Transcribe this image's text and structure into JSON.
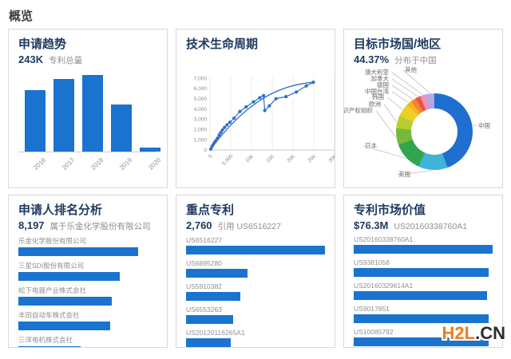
{
  "header": {
    "title": "概览"
  },
  "accent": "#1a73cf",
  "panels": {
    "trend": {
      "title": "申请趋势",
      "stat_value": "243K",
      "stat_label": "专利总量",
      "chart": {
        "type": "bar",
        "categories": [
          "2016",
          "2017",
          "2018",
          "2019",
          "2020"
        ],
        "values": [
          57,
          67,
          71,
          44,
          4
        ],
        "bar_color": "#1a73cf"
      }
    },
    "lifecycle": {
      "title": "技术生命周期",
      "chart": {
        "type": "scatter",
        "x_ticks": [
          "0",
          "5,000",
          "10K",
          "15K",
          "20K",
          "25K",
          "30K"
        ],
        "y_ticks": [
          "0",
          "1,000",
          "2,000",
          "3,000",
          "4,000",
          "5,000",
          "6,000",
          "7,000"
        ],
        "xlim": [
          0,
          30000
        ],
        "ylim": [
          0,
          7000
        ],
        "line_color": "#2d6fc7",
        "points": [
          [
            200,
            100
          ],
          [
            500,
            350
          ],
          [
            800,
            550
          ],
          [
            1100,
            750
          ],
          [
            1400,
            900
          ],
          [
            1800,
            1150
          ],
          [
            2200,
            1450
          ],
          [
            2600,
            1700
          ],
          [
            3000,
            1950
          ],
          [
            3500,
            2200
          ],
          [
            4100,
            2450
          ],
          [
            4800,
            2700
          ],
          [
            5800,
            3100
          ],
          [
            7200,
            3750
          ],
          [
            8700,
            4200
          ],
          [
            10500,
            4700
          ],
          [
            12000,
            5100
          ],
          [
            12900,
            5300
          ],
          [
            13200,
            3850
          ],
          [
            14300,
            4300
          ],
          [
            15900,
            5000
          ],
          [
            18300,
            5200
          ],
          [
            20800,
            5650
          ],
          [
            23200,
            6250
          ],
          [
            24900,
            6600
          ]
        ],
        "trend_curve": [
          [
            0,
            0
          ],
          [
            9000,
            4900
          ],
          [
            17000,
            6350
          ],
          [
            24900,
            6600
          ]
        ]
      }
    },
    "market": {
      "title": "目标市场国/地区",
      "stat_value": "44.37%",
      "stat_label": "分布于中国",
      "chart": {
        "type": "pie",
        "slices": [
          {
            "label": "中国",
            "value": 44.37,
            "color": "#1e6fd0"
          },
          {
            "label": "美国",
            "value": 12.5,
            "color": "#3fb3d8"
          },
          {
            "label": "日本",
            "value": 12.5,
            "color": "#31a64e"
          },
          {
            "label": "知识产权组织",
            "value": 7.0,
            "color": "#76b93c"
          },
          {
            "label": "欧洲",
            "value": 5.5,
            "color": "#b7cf2c"
          },
          {
            "label": "韩国",
            "value": 5.5,
            "color": "#ecd026"
          },
          {
            "label": "中国台湾",
            "value": 2.2,
            "color": "#f6b31f"
          },
          {
            "label": "德国",
            "value": 2.2,
            "color": "#f5862a"
          },
          {
            "label": "加拿大",
            "value": 2.2,
            "color": "#e9544a"
          },
          {
            "label": "澳大利亚",
            "value": 2.2,
            "color": "#f290b7"
          },
          {
            "label": "其他",
            "value": 3.83,
            "color": "#b7a6e3"
          }
        ]
      }
    },
    "applicants": {
      "title": "申请人排名分析",
      "stat_value": "8,197",
      "stat_label": "属于乐金化学股份有限公司",
      "chart": {
        "type": "bar",
        "orientation": "horizontal",
        "items": [
          {
            "label": "乐金化学股份有限公司",
            "width_pct": 86
          },
          {
            "label": "三星SDI股份有限公司",
            "width_pct": 73
          },
          {
            "label": "松下电器产业株式会社",
            "width_pct": 67
          },
          {
            "label": "丰田自动车株式会社",
            "width_pct": 66
          },
          {
            "label": "三洋电机株式会社",
            "width_pct": 45
          }
        ]
      }
    },
    "key_patents": {
      "title": "重点专利",
      "stat_value": "2,760",
      "stat_label": "引用 US6516227",
      "chart": {
        "type": "bar",
        "orientation": "horizontal",
        "items": [
          {
            "label": "US6516227",
            "width_pct": 100
          },
          {
            "label": "US6895280",
            "width_pct": 44
          },
          {
            "label": "US5910382",
            "width_pct": 39
          },
          {
            "label": "US6553263",
            "width_pct": 34
          },
          {
            "label": "US20120116265A1",
            "width_pct": 32
          }
        ]
      }
    },
    "value": {
      "title": "专利市场价值",
      "stat_value": "$76.3M",
      "stat_label": "US20160338760A1",
      "chart": {
        "type": "bar",
        "orientation": "horizontal",
        "items": [
          {
            "label": "US20160338760A1",
            "width_pct": 100
          },
          {
            "label": "US9381058",
            "width_pct": 97
          },
          {
            "label": "US20160329614A1",
            "width_pct": 96
          },
          {
            "label": "US9017851",
            "width_pct": 97
          },
          {
            "label": "US10085792",
            "width_pct": 97
          }
        ]
      }
    }
  },
  "watermark": {
    "text_orange": "H2L",
    "text_dark": ".CN",
    "color_orange": "#f47b20",
    "color_dark": "#2d2d2d"
  }
}
